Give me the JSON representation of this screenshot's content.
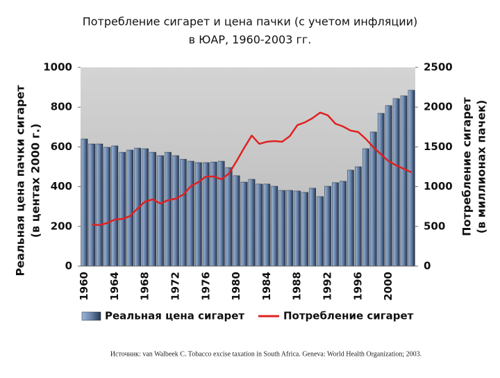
{
  "chart_data": {
    "type": "bar_line",
    "title": [
      "Потребление сигарет и цена пачки (с учетом инфляции)",
      "в ЮАР, 1960-2003 гг."
    ],
    "y_label": [
      "Реальная цена пачки сигарет",
      "(в центах 2000 г.)"
    ],
    "y2_label": [
      "Потребление сигарет",
      "(в миллионах пачек)"
    ],
    "source": "Источник: van Walbeek C. Tobacco excise taxation in South Africa. Geneva: World Health Organization; 2003.",
    "categories": [
      "1960",
      null,
      null,
      null,
      "1964",
      null,
      null,
      null,
      "1968",
      null,
      null,
      null,
      "1972",
      null,
      null,
      null,
      "1976",
      null,
      null,
      null,
      "1980",
      null,
      null,
      null,
      "1984",
      null,
      null,
      null,
      "1988",
      null,
      null,
      null,
      "1992",
      null,
      null,
      null,
      "1996",
      null,
      null,
      null,
      "2000",
      null,
      null,
      null
    ],
    "ylim": [
      0,
      1000
    ],
    "yticks": [
      0,
      200,
      400,
      600,
      800,
      1000
    ],
    "y2lim": [
      0,
      2500
    ],
    "y2ticks": [
      0,
      500,
      1000,
      1500,
      2000,
      2500
    ],
    "legend": "bottom",
    "series": [
      {
        "name": "Реальная цена сигарет",
        "kind": "bar",
        "color": "#4a6a96",
        "values": [
          640,
          615,
          615,
          598,
          605,
          573,
          584,
          594,
          591,
          573,
          556,
          573,
          556,
          538,
          528,
          521,
          521,
          524,
          528,
          496,
          455,
          423,
          437,
          413,
          413,
          402,
          381,
          381,
          378,
          371,
          392,
          350,
          402,
          420,
          427,
          483,
          500,
          591,
          675,
          769,
          808,
          843,
          857,
          885
        ]
      },
      {
        "name": "Потребление сигарет",
        "kind": "line",
        "axis": "y2",
        "color": "#e02020",
        "values": [
          null,
          524,
          516,
          542,
          586,
          594,
          629,
          726,
          813,
          839,
          787,
          830,
          848,
          900,
          1005,
          1058,
          1128,
          1128,
          1093,
          1163,
          1320,
          1486,
          1643,
          1538,
          1565,
          1573,
          1565,
          1635,
          1774,
          1809,
          1862,
          1932,
          1897,
          1792,
          1757,
          1705,
          1687,
          1600,
          1495,
          1407,
          1320,
          1267,
          1224,
          1180
        ]
      }
    ]
  }
}
